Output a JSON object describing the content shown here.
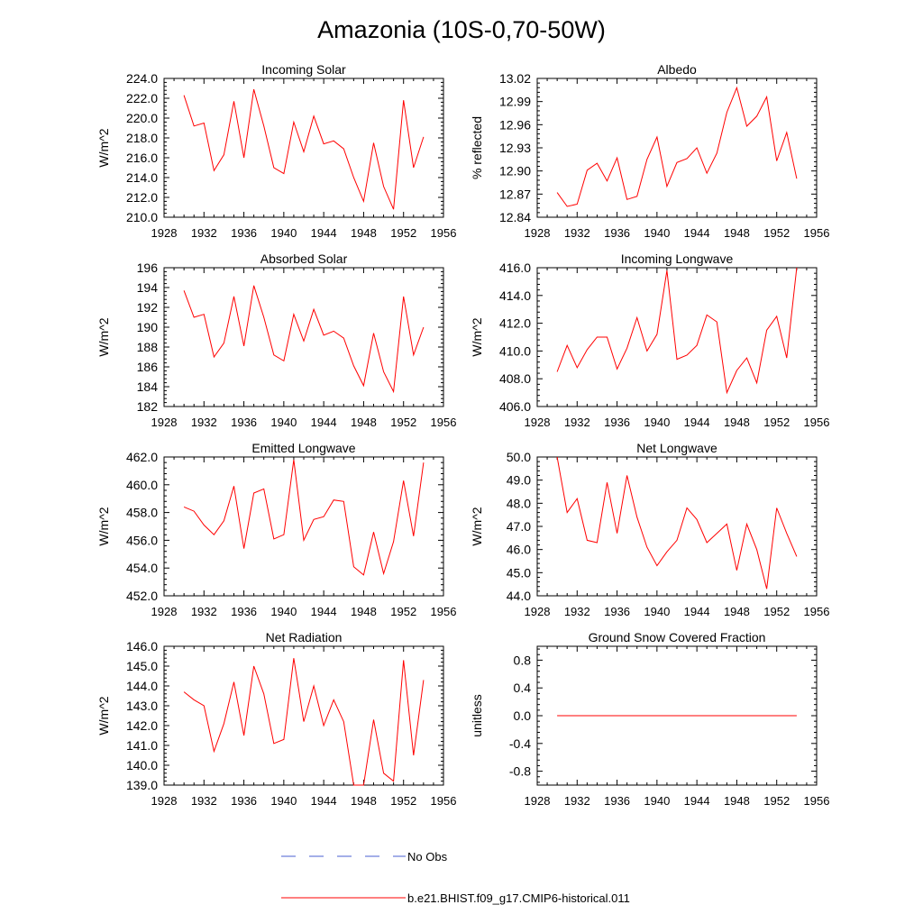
{
  "figure": {
    "title": "Amazonia (10S-0,70-50W)",
    "legend": {
      "obs_label": "No Obs",
      "obs_color": "#4a5fd0",
      "model_label": "b.e21.BHIST.f09_g17.CMIP6-historical.011",
      "model_color": "#ff0000"
    }
  },
  "chart_data": [
    {
      "type": "line",
      "title": "Incoming Solar",
      "ylabel": "W/m^2",
      "xlim": [
        1928,
        1956
      ],
      "ylim": [
        210,
        224
      ],
      "xticks": [
        1928,
        1932,
        1936,
        1940,
        1944,
        1948,
        1952,
        1956
      ],
      "yticks": [
        210,
        212,
        214,
        216,
        218,
        220,
        222,
        224
      ],
      "ytick_labels": [
        "210.0",
        "212.0",
        "214.0",
        "216.0",
        "218.0",
        "220.0",
        "222.0",
        "224.0"
      ],
      "x": [
        1930,
        1931,
        1932,
        1933,
        1934,
        1935,
        1936,
        1937,
        1938,
        1939,
        1940,
        1941,
        1942,
        1943,
        1944,
        1945,
        1946,
        1947,
        1948,
        1949,
        1950,
        1951,
        1952,
        1953,
        1954
      ],
      "series": [
        {
          "color": "#ff0000",
          "values": [
            222.3,
            219.2,
            219.5,
            214.7,
            216.3,
            221.7,
            216.0,
            222.9,
            219.2,
            215.0,
            214.4,
            219.6,
            216.6,
            220.2,
            217.4,
            217.7,
            216.9,
            214.0,
            211.6,
            217.5,
            213.1,
            210.8,
            221.8,
            215.0,
            218.1
          ]
        }
      ]
    },
    {
      "type": "line",
      "title": "Albedo",
      "ylabel": "% reflected",
      "xlim": [
        1928,
        1956
      ],
      "ylim": [
        12.84,
        13.02
      ],
      "xticks": [
        1928,
        1932,
        1936,
        1940,
        1944,
        1948,
        1952,
        1956
      ],
      "yticks": [
        12.84,
        12.87,
        12.9,
        12.93,
        12.96,
        12.99,
        13.02
      ],
      "ytick_labels": [
        "12.84",
        "12.87",
        "12.90",
        "12.93",
        "12.96",
        "12.99",
        "13.02"
      ],
      "x": [
        1930,
        1931,
        1932,
        1933,
        1934,
        1935,
        1936,
        1937,
        1938,
        1939,
        1940,
        1941,
        1942,
        1943,
        1944,
        1945,
        1946,
        1947,
        1948,
        1949,
        1950,
        1951,
        1952,
        1953,
        1954
      ],
      "series": [
        {
          "color": "#ff0000",
          "values": [
            12.872,
            12.854,
            12.857,
            12.901,
            12.91,
            12.887,
            12.917,
            12.863,
            12.867,
            12.915,
            12.944,
            12.88,
            12.911,
            12.916,
            12.93,
            12.897,
            12.923,
            12.976,
            13.008,
            12.958,
            12.971,
            12.996,
            12.913,
            12.95,
            12.89
          ]
        }
      ]
    },
    {
      "type": "line",
      "title": "Absorbed Solar",
      "ylabel": "W/m^2",
      "xlim": [
        1928,
        1956
      ],
      "ylim": [
        182,
        196
      ],
      "xticks": [
        1928,
        1932,
        1936,
        1940,
        1944,
        1948,
        1952,
        1956
      ],
      "yticks": [
        182,
        184,
        186,
        188,
        190,
        192,
        194,
        196
      ],
      "ytick_labels": [
        "182",
        "184",
        "186",
        "188",
        "190",
        "192",
        "194",
        "196"
      ],
      "x": [
        1930,
        1931,
        1932,
        1933,
        1934,
        1935,
        1936,
        1937,
        1938,
        1939,
        1940,
        1941,
        1942,
        1943,
        1944,
        1945,
        1946,
        1947,
        1948,
        1949,
        1950,
        1951,
        1952,
        1953,
        1954
      ],
      "series": [
        {
          "color": "#ff0000",
          "values": [
            193.7,
            191.0,
            191.3,
            187.0,
            188.4,
            193.1,
            188.1,
            194.2,
            191.0,
            187.2,
            186.6,
            191.3,
            188.6,
            191.8,
            189.2,
            189.6,
            188.9,
            186.1,
            184.1,
            189.4,
            185.5,
            183.5,
            193.1,
            187.2,
            190.0
          ]
        }
      ]
    },
    {
      "type": "line",
      "title": "Incoming Longwave",
      "ylabel": "W/m^2",
      "xlim": [
        1928,
        1956
      ],
      "ylim": [
        406,
        416
      ],
      "xticks": [
        1928,
        1932,
        1936,
        1940,
        1944,
        1948,
        1952,
        1956
      ],
      "yticks": [
        406,
        408,
        410,
        412,
        414,
        416
      ],
      "ytick_labels": [
        "406.0",
        "408.0",
        "410.0",
        "412.0",
        "414.0",
        "416.0"
      ],
      "x": [
        1930,
        1931,
        1932,
        1933,
        1934,
        1935,
        1936,
        1937,
        1938,
        1939,
        1940,
        1941,
        1942,
        1943,
        1944,
        1945,
        1946,
        1947,
        1948,
        1949,
        1950,
        1951,
        1952,
        1953,
        1954
      ],
      "series": [
        {
          "color": "#ff0000",
          "values": [
            408.5,
            410.4,
            408.8,
            410.1,
            411.0,
            411.0,
            408.7,
            410.2,
            412.4,
            410.0,
            411.2,
            415.8,
            409.4,
            409.7,
            410.4,
            412.6,
            412.1,
            407.0,
            408.6,
            409.5,
            407.7,
            411.5,
            412.5,
            409.5,
            416.0
          ]
        }
      ]
    },
    {
      "type": "line",
      "title": "Emitted Longwave",
      "ylabel": "W/m^2",
      "xlim": [
        1928,
        1956
      ],
      "ylim": [
        452,
        462
      ],
      "xticks": [
        1928,
        1932,
        1936,
        1940,
        1944,
        1948,
        1952,
        1956
      ],
      "yticks": [
        452,
        454,
        456,
        458,
        460,
        462
      ],
      "ytick_labels": [
        "452.0",
        "454.0",
        "456.0",
        "458.0",
        "460.0",
        "462.0"
      ],
      "x": [
        1930,
        1931,
        1932,
        1933,
        1934,
        1935,
        1936,
        1937,
        1938,
        1939,
        1940,
        1941,
        1942,
        1943,
        1944,
        1945,
        1946,
        1947,
        1948,
        1949,
        1950,
        1951,
        1952,
        1953,
        1954
      ],
      "series": [
        {
          "color": "#ff0000",
          "values": [
            458.4,
            458.1,
            457.1,
            456.4,
            457.4,
            459.9,
            455.4,
            459.4,
            459.7,
            456.1,
            456.4,
            461.8,
            456.0,
            457.5,
            457.7,
            458.9,
            458.8,
            454.1,
            453.5,
            456.6,
            453.6,
            455.9,
            460.3,
            456.3,
            461.6
          ]
        }
      ]
    },
    {
      "type": "line",
      "title": "Net Longwave",
      "ylabel": "W/m^2",
      "xlim": [
        1928,
        1956
      ],
      "ylim": [
        44,
        50
      ],
      "xticks": [
        1928,
        1932,
        1936,
        1940,
        1944,
        1948,
        1952,
        1956
      ],
      "yticks": [
        44,
        45,
        46,
        47,
        48,
        49,
        50
      ],
      "ytick_labels": [
        "44.0",
        "45.0",
        "46.0",
        "47.0",
        "48.0",
        "49.0",
        "50.0"
      ],
      "x": [
        1930,
        1931,
        1932,
        1933,
        1934,
        1935,
        1936,
        1937,
        1938,
        1939,
        1940,
        1941,
        1942,
        1943,
        1944,
        1945,
        1946,
        1947,
        1948,
        1949,
        1950,
        1951,
        1952,
        1953,
        1954
      ],
      "series": [
        {
          "color": "#ff0000",
          "values": [
            50.0,
            47.6,
            48.2,
            46.4,
            46.3,
            48.9,
            46.7,
            49.2,
            47.4,
            46.1,
            45.3,
            45.9,
            46.4,
            47.8,
            47.3,
            46.3,
            46.7,
            47.1,
            45.1,
            47.1,
            46.0,
            44.3,
            47.8,
            46.7,
            45.7
          ]
        }
      ]
    },
    {
      "type": "line",
      "title": "Net Radiation",
      "ylabel": "W/m^2",
      "xlim": [
        1928,
        1956
      ],
      "ylim": [
        139,
        146
      ],
      "xticks": [
        1928,
        1932,
        1936,
        1940,
        1944,
        1948,
        1952,
        1956
      ],
      "yticks": [
        139,
        140,
        141,
        142,
        143,
        144,
        145,
        146
      ],
      "ytick_labels": [
        "139.0",
        "140.0",
        "141.0",
        "142.0",
        "143.0",
        "144.0",
        "145.0",
        "146.0"
      ],
      "x": [
        1930,
        1931,
        1932,
        1933,
        1934,
        1935,
        1936,
        1937,
        1938,
        1939,
        1940,
        1941,
        1942,
        1943,
        1944,
        1945,
        1946,
        1947,
        1948,
        1949,
        1950,
        1951,
        1952,
        1953,
        1954
      ],
      "series": [
        {
          "color": "#ff0000",
          "values": [
            143.7,
            143.3,
            143.0,
            140.7,
            142.1,
            144.2,
            141.5,
            145.0,
            143.6,
            141.1,
            141.3,
            145.4,
            142.2,
            144.0,
            142.0,
            143.3,
            142.2,
            139.0,
            139.0,
            142.3,
            139.6,
            139.2,
            145.3,
            140.5,
            144.3
          ]
        }
      ]
    },
    {
      "type": "line",
      "title": "Ground Snow Covered Fraction",
      "ylabel": "unitless",
      "xlim": [
        1928,
        1956
      ],
      "ylim": [
        -1,
        1
      ],
      "xticks": [
        1928,
        1932,
        1936,
        1940,
        1944,
        1948,
        1952,
        1956
      ],
      "yticks": [
        -0.8,
        -0.4,
        0.0,
        0.4,
        0.8
      ],
      "ytick_labels": [
        "-0.8",
        "-0.4",
        "0.0",
        "0.4",
        "0.8"
      ],
      "x": [
        1930,
        1931,
        1932,
        1933,
        1934,
        1935,
        1936,
        1937,
        1938,
        1939,
        1940,
        1941,
        1942,
        1943,
        1944,
        1945,
        1946,
        1947,
        1948,
        1949,
        1950,
        1951,
        1952,
        1953,
        1954
      ],
      "series": [
        {
          "color": "#ff0000",
          "values": [
            0,
            0,
            0,
            0,
            0,
            0,
            0,
            0,
            0,
            0,
            0,
            0,
            0,
            0,
            0,
            0,
            0,
            0,
            0,
            0,
            0,
            0,
            0,
            0,
            0
          ]
        }
      ]
    }
  ]
}
